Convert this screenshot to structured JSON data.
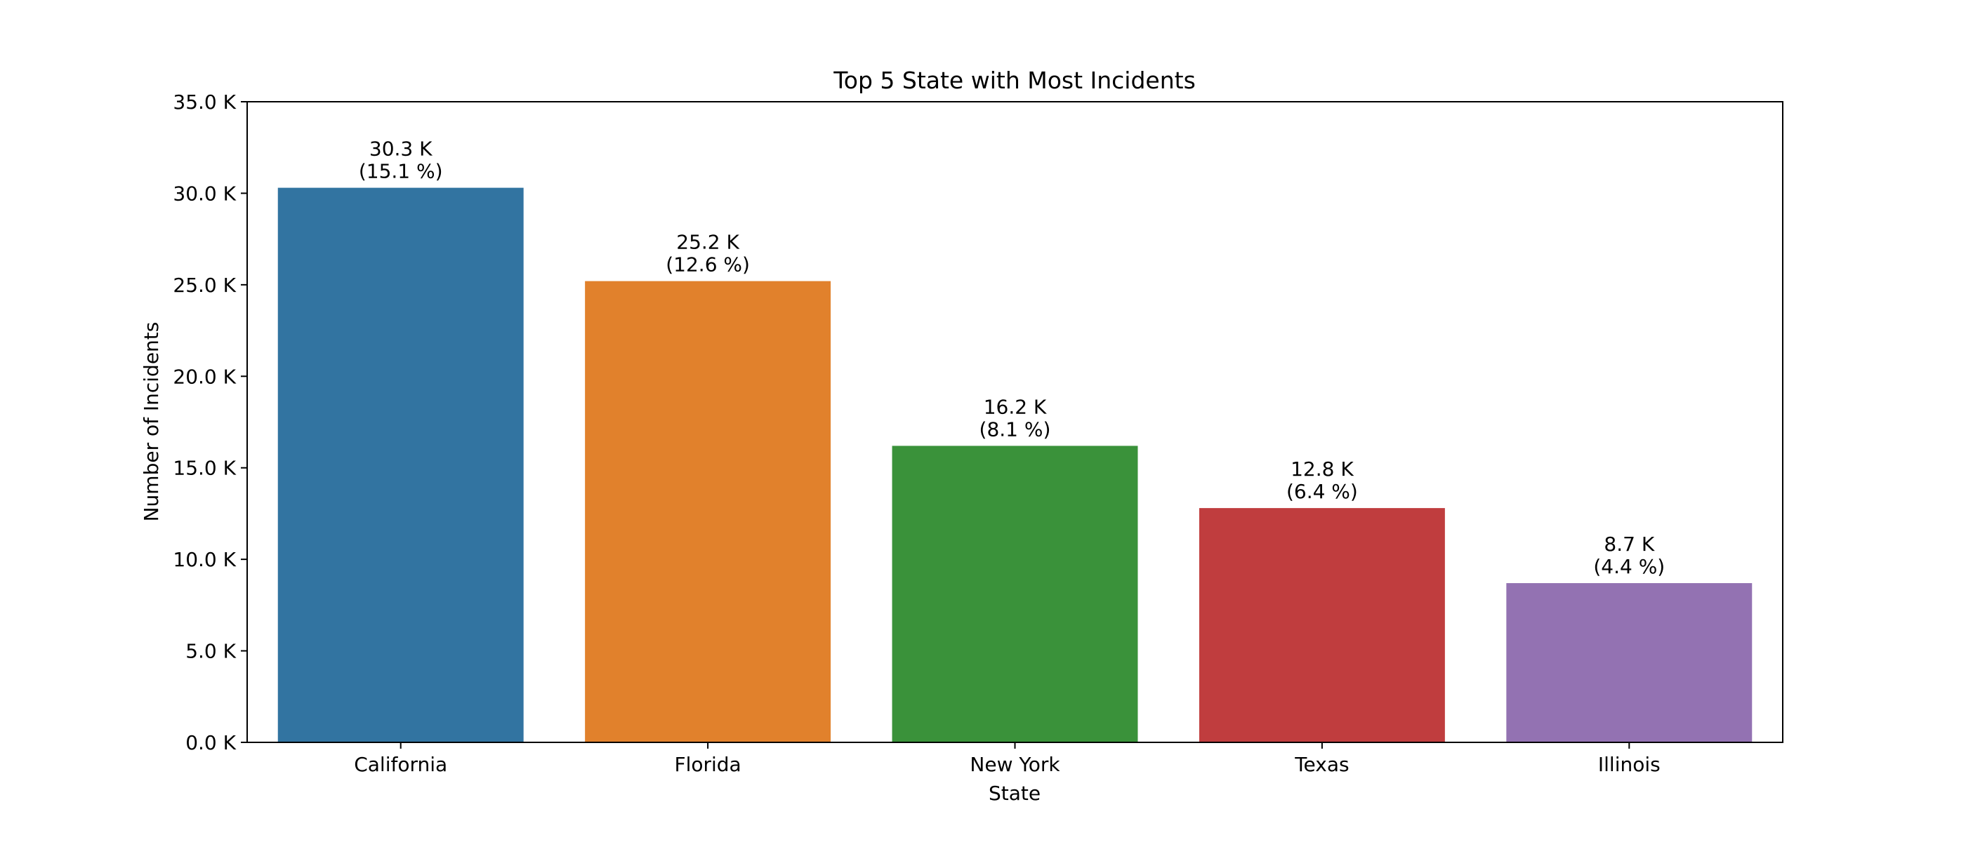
{
  "chart_data": {
    "type": "bar",
    "title": "Top 5 State with Most Incidents",
    "xlabel": "State",
    "ylabel": "Number of Incidents",
    "categories": [
      "California",
      "Florida",
      "New York",
      "Texas",
      "Illinois"
    ],
    "values": [
      30300,
      25200,
      16200,
      12800,
      8700
    ],
    "value_labels": [
      "30.3 K",
      "25.2 K",
      "16.2 K",
      "12.8 K",
      "8.7 K"
    ],
    "percent_labels": [
      "(15.1 %)",
      "(12.6 %)",
      "(8.1 %)",
      "(6.4 %)",
      "(4.4 %)"
    ],
    "colors": [
      "#3274a1",
      "#e1812c",
      "#3a923a",
      "#c03d3e",
      "#9372b2"
    ],
    "ylim": [
      0,
      35000
    ],
    "yticks": [
      0,
      5000,
      10000,
      15000,
      20000,
      25000,
      30000,
      35000
    ],
    "ytick_labels": [
      "0.0 K",
      "5.0 K",
      "10.0 K",
      "15.0 K",
      "20.0 K",
      "25.0 K",
      "30.0 K",
      "35.0 K"
    ],
    "grid": false,
    "legend": "none"
  }
}
